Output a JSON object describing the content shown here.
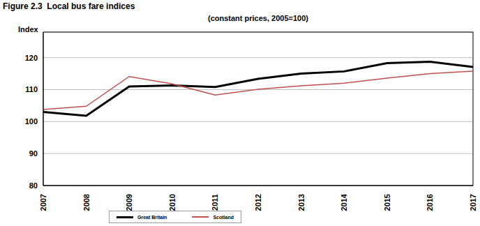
{
  "chart_data": {
    "type": "line",
    "title": "Figure 2.3  Local bus fare indices",
    "subtitle": "(constant prices, 2005=100)",
    "y_label": "Index",
    "categories": [
      "2007",
      "2008",
      "2009",
      "2010",
      "2011",
      "2012",
      "2013",
      "2014",
      "2015",
      "2016",
      "2017"
    ],
    "series": [
      {
        "name": "Great Britain",
        "color": "#000000",
        "values": [
          103,
          101.8,
          111,
          111.3,
          110.8,
          113.4,
          115,
          115.7,
          118.3,
          118.7,
          117.1
        ]
      },
      {
        "name": "Scotland",
        "color": "#c0504d",
        "values": [
          103.8,
          104.8,
          114.1,
          111.8,
          108.3,
          110.1,
          111.2,
          112,
          113.6,
          115,
          115.8
        ]
      }
    ],
    "ylim": [
      80,
      128
    ],
    "yticks": [
      80,
      90,
      100,
      110,
      120
    ],
    "grid": true,
    "legend": "bottom"
  }
}
